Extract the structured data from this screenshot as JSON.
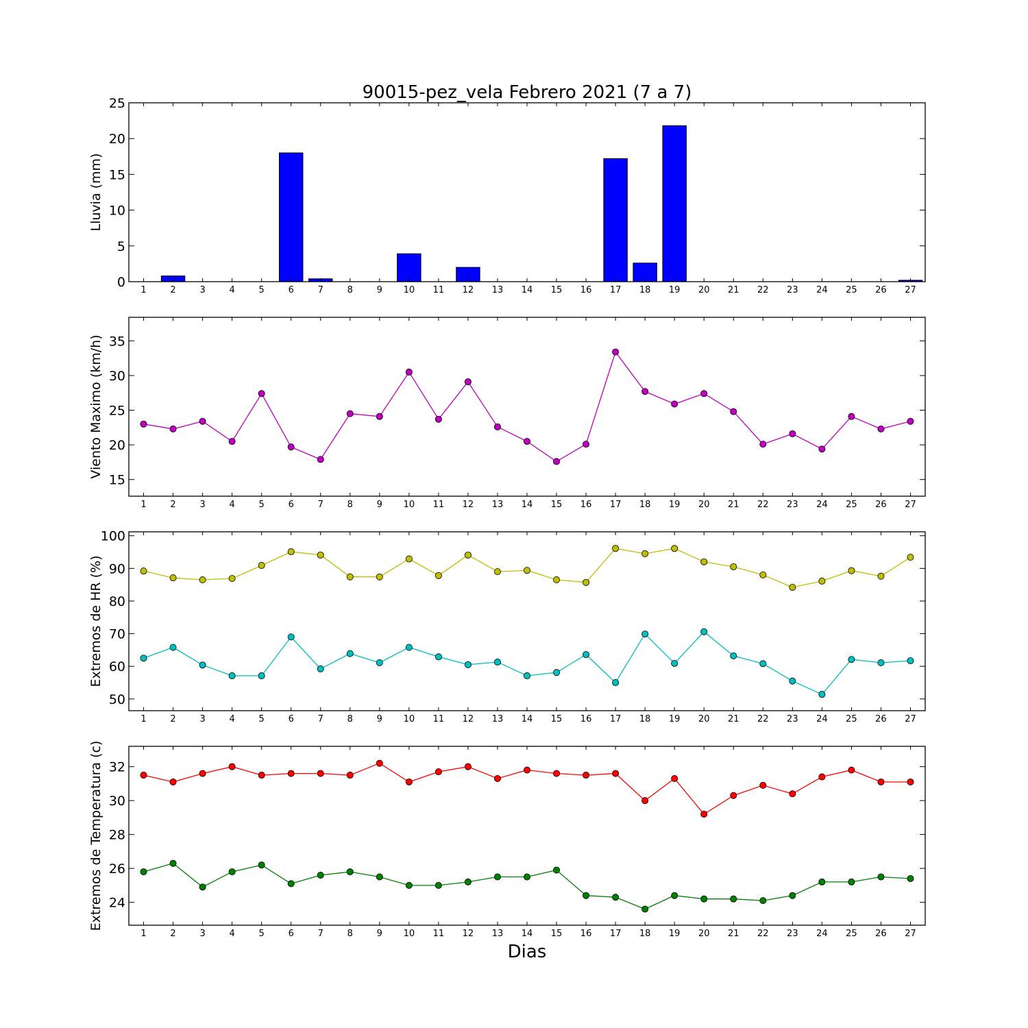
{
  "figure": {
    "title": "90015-pez_vela Febrero 2021  (7 a 7)",
    "xlabel": "Dias"
  },
  "chart_data": [
    {
      "type": "bar",
      "ylabel": "Lluvia (mm)",
      "x": [
        1,
        2,
        3,
        4,
        5,
        6,
        7,
        8,
        9,
        10,
        11,
        12,
        13,
        14,
        15,
        16,
        17,
        18,
        19,
        20,
        21,
        22,
        23,
        24,
        25,
        26,
        27
      ],
      "ylim": [
        0,
        25
      ],
      "yticks": [
        0,
        5,
        10,
        15,
        20,
        25
      ],
      "color": "#0000ff",
      "series": [
        {
          "values": [
            0,
            0.8,
            0,
            0,
            0,
            18.0,
            0.4,
            0,
            0,
            3.9,
            0,
            2.0,
            0,
            0,
            0,
            0,
            17.2,
            2.6,
            21.8,
            0,
            0,
            0,
            0,
            0,
            0,
            0,
            0.2
          ],
          "color": "#0000ff"
        }
      ]
    },
    {
      "type": "line",
      "ylabel": "Viento Maximo (km/h)",
      "x": [
        1,
        2,
        3,
        4,
        5,
        6,
        7,
        8,
        9,
        10,
        11,
        12,
        13,
        14,
        15,
        16,
        17,
        18,
        19,
        20,
        21,
        22,
        23,
        24,
        25,
        26,
        27
      ],
      "ylim": [
        12.6,
        38.4
      ],
      "yticks": [
        15,
        20,
        25,
        30,
        35
      ],
      "series": [
        {
          "values": [
            23.0,
            22.3,
            23.4,
            20.5,
            27.4,
            19.7,
            17.9,
            24.5,
            24.1,
            30.5,
            23.7,
            29.1,
            22.6,
            20.5,
            17.6,
            20.1,
            33.4,
            27.7,
            25.9,
            27.4,
            24.8,
            20.1,
            21.6,
            19.4,
            24.1,
            22.3,
            23.4
          ],
          "color": "#bf00bf"
        }
      ]
    },
    {
      "type": "line",
      "ylabel": "Extremos de HR (%)",
      "x": [
        1,
        2,
        3,
        4,
        5,
        6,
        7,
        8,
        9,
        10,
        11,
        12,
        13,
        14,
        15,
        16,
        17,
        18,
        19,
        20,
        21,
        22,
        23,
        24,
        25,
        26,
        27
      ],
      "ylim": [
        46.4,
        101.2
      ],
      "yticks": [
        50,
        60,
        70,
        80,
        90,
        100
      ],
      "series": [
        {
          "values": [
            89.2,
            87.1,
            86.5,
            86.9,
            90.9,
            95.1,
            94.1,
            87.4,
            87.4,
            92.9,
            87.8,
            94.1,
            89.0,
            89.4,
            86.5,
            85.7,
            96.1,
            94.5,
            96.1,
            92.0,
            90.5,
            88.0,
            84.2,
            86.1,
            89.3,
            87.6,
            93.4
          ],
          "color": "#bfbf00"
        },
        {
          "values": [
            62.5,
            65.8,
            60.4,
            57.1,
            57.1,
            69.0,
            59.2,
            63.9,
            61.1,
            65.8,
            62.9,
            60.5,
            61.3,
            57.1,
            58.1,
            63.6,
            55.0,
            69.9,
            60.9,
            70.6,
            63.2,
            60.8,
            55.5,
            51.4,
            62.1,
            61.1,
            61.7
          ],
          "color": "#00bfbf"
        }
      ]
    },
    {
      "type": "line",
      "ylabel": "Extremos de Temperatura (c)",
      "x": [
        1,
        2,
        3,
        4,
        5,
        6,
        7,
        8,
        9,
        10,
        11,
        12,
        13,
        14,
        15,
        16,
        17,
        18,
        19,
        20,
        21,
        22,
        23,
        24,
        25,
        26,
        27
      ],
      "ylim": [
        22.65,
        33.2
      ],
      "yticks": [
        24,
        26,
        28,
        30,
        32
      ],
      "series": [
        {
          "values": [
            31.5,
            31.1,
            31.6,
            32.0,
            31.5,
            31.6,
            31.6,
            31.5,
            32.2,
            31.1,
            31.7,
            32.0,
            31.3,
            31.8,
            31.6,
            31.5,
            31.6,
            30.0,
            31.3,
            29.2,
            30.3,
            30.9,
            30.4,
            31.4,
            31.8,
            31.1,
            31.1
          ],
          "color": "#ff0000"
        },
        {
          "values": [
            25.8,
            26.3,
            24.9,
            25.8,
            26.2,
            25.1,
            25.6,
            25.8,
            25.5,
            25.0,
            25.0,
            25.2,
            25.5,
            25.5,
            25.9,
            24.4,
            24.3,
            23.6,
            24.4,
            24.2,
            24.2,
            24.1,
            24.4,
            25.2,
            25.2,
            25.5,
            25.4
          ],
          "color": "#008000"
        }
      ]
    }
  ]
}
